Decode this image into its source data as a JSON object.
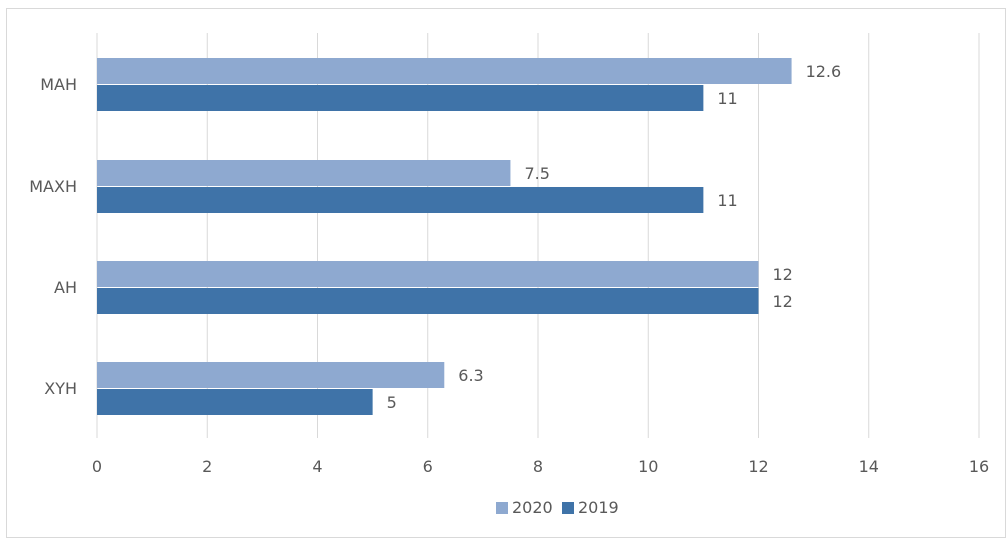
{
  "chart_data": {
    "type": "bar",
    "orientation": "horizontal",
    "categories": [
      "MAH",
      "MAXH",
      "AH",
      "XYH"
    ],
    "series": [
      {
        "name": "2020",
        "values": [
          12.6,
          7.5,
          12,
          6.3
        ],
        "color": "#8EA9D0"
      },
      {
        "name": "2019",
        "values": [
          11,
          11,
          12,
          5
        ],
        "color": "#3F73A8"
      }
    ],
    "xlim": [
      0,
      16
    ],
    "xticks": [
      0,
      2,
      4,
      6,
      8,
      10,
      12,
      14,
      16
    ],
    "grid": true,
    "legend_position": "bottom",
    "title": "",
    "xlabel": "",
    "ylabel": ""
  }
}
